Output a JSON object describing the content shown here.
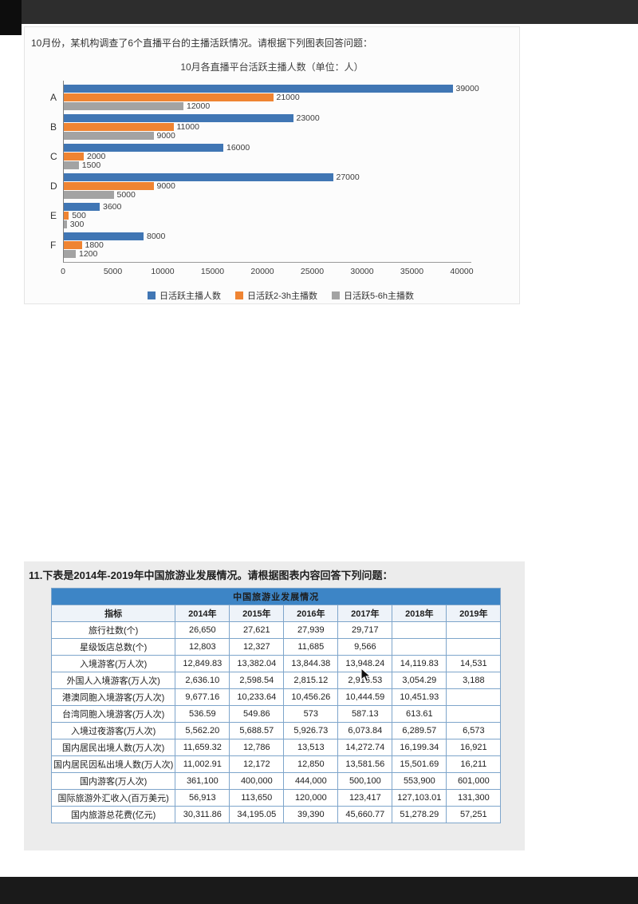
{
  "section1": {
    "question": "10月份，某机构调查了6个直播平台的主播活跃情况。请根据下列图表回答问题：",
    "chart_title": "10月各直播平台活跃主播人数（单位：人）"
  },
  "chart_data": {
    "type": "bar",
    "orientation": "horizontal",
    "title": "10月各直播平台活跃主播人数（单位：人）",
    "categories": [
      "A",
      "B",
      "C",
      "D",
      "E",
      "F"
    ],
    "series": [
      {
        "name": "日活跃主播人数",
        "color": "#4076b4",
        "values": [
          39000,
          23000,
          16000,
          27000,
          3600,
          8000
        ]
      },
      {
        "name": "日活跃2-3h主播数",
        "color": "#ef8432",
        "values": [
          21000,
          11000,
          2000,
          9000,
          500,
          1800
        ]
      },
      {
        "name": "日活跃5-6h主播数",
        "color": "#a3a3a3",
        "values": [
          12000,
          9000,
          1500,
          5000,
          300,
          1200
        ]
      }
    ],
    "xlim": [
      0,
      40000
    ],
    "x_ticks": [
      0,
      5000,
      10000,
      15000,
      20000,
      25000,
      30000,
      35000,
      40000
    ],
    "legend_position": "bottom",
    "grid": false
  },
  "section2": {
    "question": "11.下表是2014年-2019年中国旅游业发展情况。请根据图表内容回答下列问题：",
    "table": {
      "title": "中国旅游业发展情况",
      "header_bg": "#3d85c6",
      "border_color": "#7ea5cb",
      "columns": [
        "指标",
        "2014年",
        "2015年",
        "2016年",
        "2017年",
        "2018年",
        "2019年"
      ],
      "rows": [
        {
          "label": "旅行社数(个)",
          "values": [
            "26,650",
            "27,621",
            "27,939",
            "29,717",
            "",
            ""
          ]
        },
        {
          "label": "星级饭店总数(个)",
          "values": [
            "12,803",
            "12,327",
            "11,685",
            "9,566",
            "",
            ""
          ]
        },
        {
          "label": "入境游客(万人次)",
          "values": [
            "12,849.83",
            "13,382.04",
            "13,844.38",
            "13,948.24",
            "14,119.83",
            "14,531"
          ]
        },
        {
          "label": "外国人入境游客(万人次)",
          "values": [
            "2,636.10",
            "2,598.54",
            "2,815.12",
            "2,916.53",
            "3,054.29",
            "3,188"
          ]
        },
        {
          "label": "港澳同胞入境游客(万人次)",
          "values": [
            "9,677.16",
            "10,233.64",
            "10,456.26",
            "10,444.59",
            "10,451.93",
            ""
          ]
        },
        {
          "label": "台湾同胞入境游客(万人次)",
          "values": [
            "536.59",
            "549.86",
            "573",
            "587.13",
            "613.61",
            ""
          ]
        },
        {
          "label": "入境过夜游客(万人次)",
          "values": [
            "5,562.20",
            "5,688.57",
            "5,926.73",
            "6,073.84",
            "6,289.57",
            "6,573"
          ]
        },
        {
          "label": "国内居民出境人数(万人次)",
          "values": [
            "11,659.32",
            "12,786",
            "13,513",
            "14,272.74",
            "16,199.34",
            "16,921"
          ]
        },
        {
          "label": "国内居民因私出境人数(万人次)",
          "values": [
            "11,002.91",
            "12,172",
            "12,850",
            "13,581.56",
            "15,501.69",
            "16,211"
          ]
        },
        {
          "label": "国内游客(万人次)",
          "values": [
            "361,100",
            "400,000",
            "444,000",
            "500,100",
            "553,900",
            "601,000"
          ]
        },
        {
          "label": "国际旅游外汇收入(百万美元)",
          "values": [
            "56,913",
            "113,650",
            "120,000",
            "123,417",
            "127,103.01",
            "131,300"
          ]
        },
        {
          "label": "国内旅游总花费(亿元)",
          "values": [
            "30,311.86",
            "34,195.05",
            "39,390",
            "45,660.77",
            "51,278.29",
            "57,251"
          ]
        }
      ]
    }
  }
}
